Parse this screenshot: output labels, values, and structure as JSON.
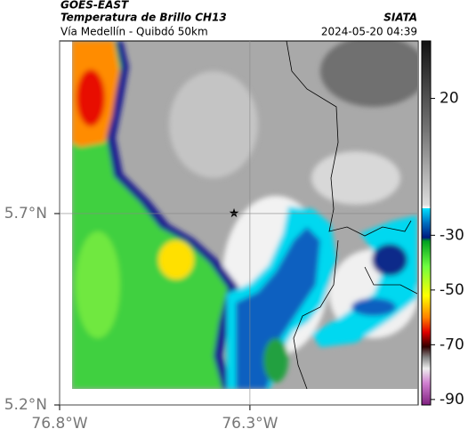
{
  "header": {
    "title": "GOES-EAST",
    "subtitle": "Temperatura de Brillo CH13",
    "location": "Vía Medellín - Quibdó 50km",
    "source": "SIATA",
    "timestamp": "2024-05-20 04:39"
  },
  "map": {
    "xlim": [
      -76.8,
      -75.858
    ],
    "ylim": [
      5.2,
      6.151
    ],
    "xticks": [
      {
        "value": -76.8,
        "label": "76.8°W"
      },
      {
        "value": -76.3,
        "label": "76.3°W"
      }
    ],
    "yticks": [
      {
        "value": 5.7,
        "label": "5.7°N"
      },
      {
        "value": 5.2,
        "label": "5.2°N"
      }
    ]
  },
  "colorbar": {
    "lim": [
      -92,
      41
    ],
    "ticks": [
      20,
      -30,
      -50,
      -70,
      -90
    ]
  }
}
